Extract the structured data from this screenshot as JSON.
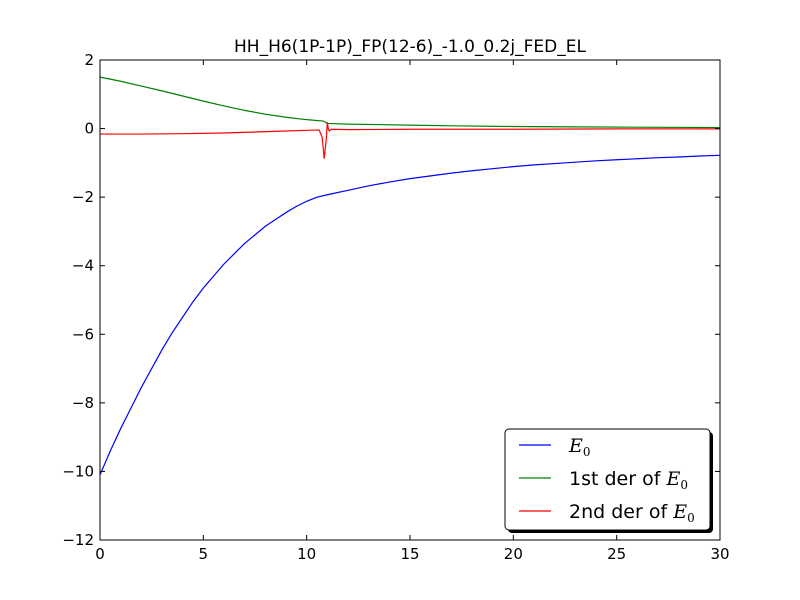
{
  "chart_data": {
    "type": "line",
    "title": "HH_H6(1P-1P)_FP(12-6)_-1.0_0.2j_FED_EL",
    "xlabel": "",
    "ylabel": "",
    "xlim": [
      0,
      30
    ],
    "ylim": [
      -12,
      2
    ],
    "xticks": [
      0,
      5,
      10,
      15,
      20,
      25,
      30
    ],
    "yticks": [
      2,
      0,
      -2,
      -4,
      -6,
      -8,
      -10,
      -12
    ],
    "xtick_labels": [
      "0",
      "5",
      "10",
      "15",
      "20",
      "25",
      "30"
    ],
    "ytick_labels": [
      "2",
      "0",
      "−2",
      "−4",
      "−6",
      "−8",
      "−10",
      "−12"
    ],
    "grid": false,
    "legend_position": "lower-right",
    "series": [
      {
        "name": "E_0",
        "legend_prefix": "",
        "legend_symbol": "E",
        "legend_subscript": "0",
        "color": "#0000ff",
        "points": [
          [
            0,
            -10.1
          ],
          [
            0.5,
            -9.4
          ],
          [
            1,
            -8.75
          ],
          [
            1.5,
            -8.15
          ],
          [
            2,
            -7.55
          ],
          [
            2.5,
            -7.0
          ],
          [
            3,
            -6.45
          ],
          [
            3.5,
            -5.95
          ],
          [
            4,
            -5.5
          ],
          [
            4.5,
            -5.05
          ],
          [
            5,
            -4.65
          ],
          [
            5.5,
            -4.3
          ],
          [
            6,
            -3.95
          ],
          [
            6.5,
            -3.65
          ],
          [
            7,
            -3.35
          ],
          [
            7.5,
            -3.1
          ],
          [
            8,
            -2.85
          ],
          [
            8.5,
            -2.65
          ],
          [
            9,
            -2.45
          ],
          [
            9.5,
            -2.27
          ],
          [
            10,
            -2.12
          ],
          [
            10.5,
            -2.0
          ],
          [
            11,
            -1.93
          ],
          [
            12,
            -1.8
          ],
          [
            13,
            -1.67
          ],
          [
            14,
            -1.56
          ],
          [
            15,
            -1.46
          ],
          [
            16,
            -1.38
          ],
          [
            17,
            -1.3
          ],
          [
            18,
            -1.23
          ],
          [
            19,
            -1.17
          ],
          [
            20,
            -1.11
          ],
          [
            21,
            -1.06
          ],
          [
            22,
            -1.02
          ],
          [
            23,
            -0.98
          ],
          [
            24,
            -0.94
          ],
          [
            25,
            -0.91
          ],
          [
            26,
            -0.88
          ],
          [
            27,
            -0.85
          ],
          [
            28,
            -0.83
          ],
          [
            29,
            -0.8
          ],
          [
            30,
            -0.78
          ]
        ]
      },
      {
        "name": "1st der of E_0",
        "legend_prefix": "1st der of ",
        "legend_symbol": "E",
        "legend_subscript": "0",
        "color": "#008000",
        "points": [
          [
            0,
            1.5
          ],
          [
            1,
            1.38
          ],
          [
            2,
            1.24
          ],
          [
            3,
            1.1
          ],
          [
            4,
            0.95
          ],
          [
            5,
            0.8
          ],
          [
            6,
            0.66
          ],
          [
            7,
            0.53
          ],
          [
            8,
            0.42
          ],
          [
            9,
            0.33
          ],
          [
            10,
            0.26
          ],
          [
            10.8,
            0.22
          ],
          [
            11,
            0.15
          ],
          [
            12,
            0.13
          ],
          [
            13,
            0.12
          ],
          [
            15,
            0.1
          ],
          [
            17,
            0.08
          ],
          [
            20,
            0.06
          ],
          [
            23,
            0.05
          ],
          [
            26,
            0.04
          ],
          [
            30,
            0.03
          ]
        ]
      },
      {
        "name": "2nd der of E_0",
        "legend_prefix": "2nd der of ",
        "legend_symbol": "E",
        "legend_subscript": "0",
        "color": "#ff0000",
        "points": [
          [
            0,
            -0.16
          ],
          [
            2,
            -0.16
          ],
          [
            4,
            -0.15
          ],
          [
            6,
            -0.13
          ],
          [
            8,
            -0.09
          ],
          [
            9,
            -0.07
          ],
          [
            10,
            -0.05
          ],
          [
            10.6,
            -0.04
          ],
          [
            10.75,
            -0.25
          ],
          [
            10.85,
            -0.88
          ],
          [
            10.95,
            -0.3
          ],
          [
            11.0,
            0.18
          ],
          [
            11.05,
            -0.02
          ],
          [
            11.1,
            -0.07
          ],
          [
            11.2,
            -0.02
          ],
          [
            12,
            -0.03
          ],
          [
            15,
            -0.02
          ],
          [
            20,
            -0.02
          ],
          [
            25,
            -0.01
          ],
          [
            30,
            -0.01
          ]
        ]
      }
    ]
  }
}
